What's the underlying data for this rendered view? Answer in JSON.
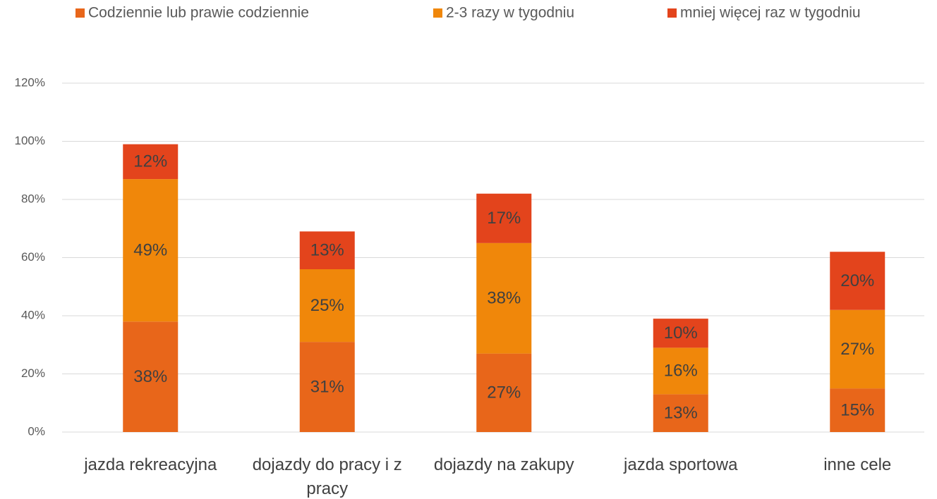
{
  "chart_data": {
    "type": "stacked_bar",
    "categories": [
      "jazda rekreacyjna",
      "dojazdy do pracy i z pracy",
      "dojazdy na zakupy",
      "jazda sportowa",
      "inne cele"
    ],
    "series": [
      {
        "name": "Codziennie lub prawie codziennie",
        "color": "#e8661a",
        "values": [
          38,
          31,
          27,
          13,
          15
        ],
        "value_labels": [
          "38%",
          "31%",
          "27%",
          "13%",
          "15%"
        ]
      },
      {
        "name": "2-3 razy w tygodniu",
        "color": "#f0870a",
        "values": [
          49,
          25,
          38,
          16,
          27
        ],
        "value_labels": [
          "49%",
          "25%",
          "38%",
          "16%",
          "27%"
        ]
      },
      {
        "name": "mniej więcej raz w tygodniu",
        "color": "#e3441c",
        "values": [
          12,
          13,
          17,
          10,
          20
        ],
        "value_labels": [
          "12%",
          "13%",
          "17%",
          "10%",
          "20%"
        ]
      }
    ],
    "ylim": [
      0,
      120
    ],
    "yticks": [
      {
        "value": 0,
        "label": "0%"
      },
      {
        "value": 20,
        "label": "20%"
      },
      {
        "value": 40,
        "label": "40%"
      },
      {
        "value": 60,
        "label": "60%"
      },
      {
        "value": 80,
        "label": "80%"
      },
      {
        "value": 100,
        "label": "100%"
      },
      {
        "value": 120,
        "label": "120%"
      }
    ],
    "grid": true,
    "legend": "top"
  }
}
